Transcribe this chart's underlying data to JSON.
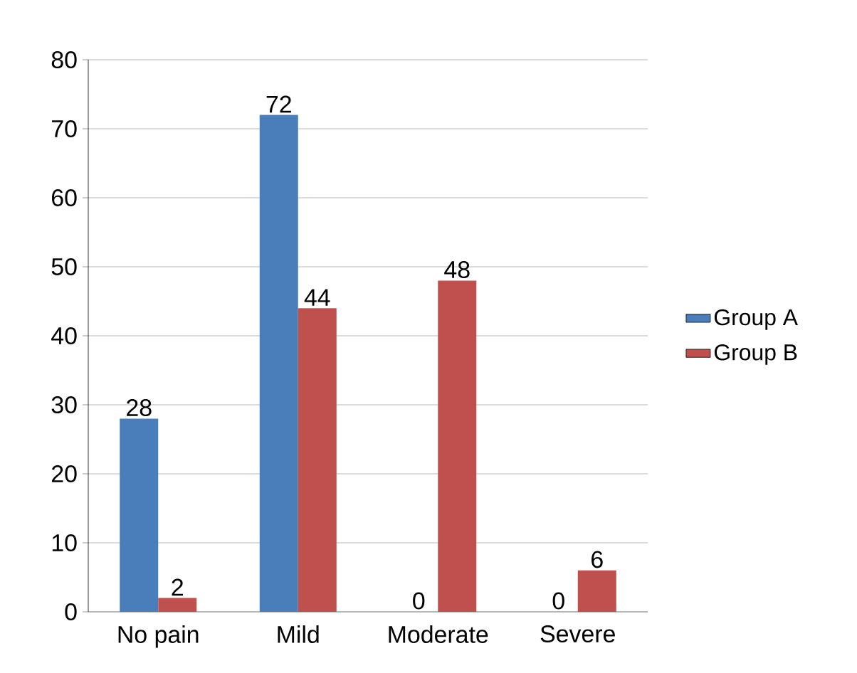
{
  "chart_data": {
    "type": "bar",
    "categories": [
      "No pain",
      "Mild",
      "Moderate",
      "Severe"
    ],
    "series": [
      {
        "name": "Group A",
        "color": "#4a7ebb",
        "values": [
          28,
          72,
          0,
          0
        ]
      },
      {
        "name": "Group B",
        "color": "#c0504d",
        "values": [
          2,
          44,
          48,
          6
        ]
      }
    ],
    "ylim": [
      0,
      80
    ],
    "yticks": [
      0,
      10,
      20,
      30,
      40,
      50,
      60,
      70,
      80
    ],
    "grid": "y",
    "legend": "right",
    "data_labels": true
  }
}
